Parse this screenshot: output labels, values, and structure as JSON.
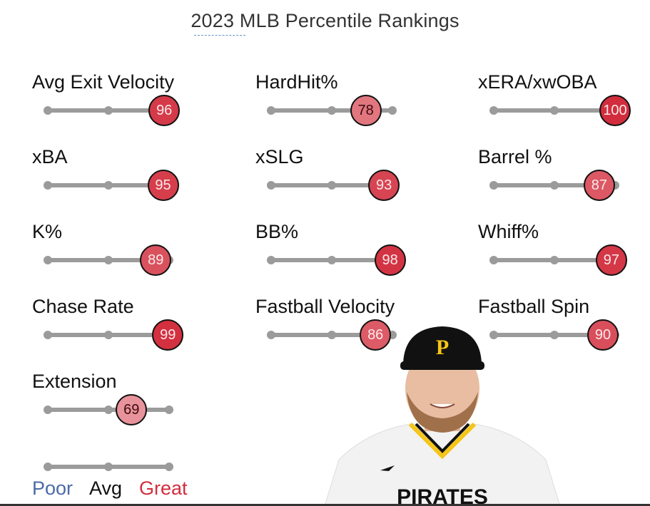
{
  "title": "2023 MLB Percentile Rankings",
  "metrics": [
    {
      "label": "Avg Exit Velocity",
      "value": 96
    },
    {
      "label": "HardHit%",
      "value": 78
    },
    {
      "label": "xERA/xwOBA",
      "value": 100
    },
    {
      "label": "xBA",
      "value": 95
    },
    {
      "label": "xSLG",
      "value": 93
    },
    {
      "label": "Barrel %",
      "value": 87
    },
    {
      "label": "K%",
      "value": 89
    },
    {
      "label": "BB%",
      "value": 98
    },
    {
      "label": "Whiff%",
      "value": 97
    },
    {
      "label": "Chase Rate",
      "value": 99
    },
    {
      "label": "Fastball Velocity",
      "value": 86
    },
    {
      "label": "Fastball Spin",
      "value": 90
    },
    {
      "label": "Extension",
      "value": 69
    }
  ],
  "legend": {
    "poor": "Poor",
    "avg": "Avg",
    "great": "Great"
  },
  "colors": {
    "poor": "#4a6aa8",
    "great": "#d22d3d",
    "track": "#9b9b9b"
  },
  "chart_data": {
    "type": "percentile-sliders",
    "title": "2023 MLB Percentile Rankings",
    "range": [
      0,
      100
    ],
    "categories": [
      "Avg Exit Velocity",
      "HardHit%",
      "xERA/xwOBA",
      "xBA",
      "xSLG",
      "Barrel %",
      "K%",
      "BB%",
      "Whiff%",
      "Chase Rate",
      "Fastball Velocity",
      "Fastball Spin",
      "Extension"
    ],
    "values": [
      96,
      78,
      100,
      95,
      93,
      87,
      89,
      98,
      97,
      99,
      86,
      90,
      69
    ]
  }
}
